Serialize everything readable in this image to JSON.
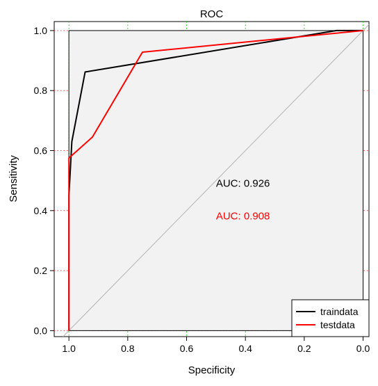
{
  "chart_data": {
    "type": "line",
    "title": "ROC",
    "xlabel": "Specificity",
    "ylabel": "Sensitivity",
    "x_reversed": true,
    "xlim": [
      1.05,
      -0.02
    ],
    "ylim": [
      -0.02,
      1.03
    ],
    "x_ticks": [
      1.0,
      0.8,
      0.6,
      0.4,
      0.2,
      0.0
    ],
    "x_tick_labels": [
      "1.0",
      "0.8",
      "0.6",
      "0.4",
      "0.2",
      "0.0"
    ],
    "y_ticks": [
      0.0,
      0.2,
      0.4,
      0.6,
      0.8,
      1.0
    ],
    "y_tick_labels": [
      "0.0",
      "0.2",
      "0.4",
      "0.6",
      "0.8",
      "1.0"
    ],
    "grid": "dotted; vertical lines green, horizontal lines red",
    "panel_background": "#f2f2f2",
    "diagonal_reference": true,
    "legend_position": "bottom-right",
    "series": [
      {
        "name": "traindata",
        "color": "#000000",
        "x": [
          1.0,
          1.0,
          0.99,
          0.945,
          0.09,
          0.0
        ],
        "y": [
          0.0,
          0.45,
          0.63,
          0.862,
          1.0,
          1.0
        ]
      },
      {
        "name": "testdata",
        "color": "#ff0000",
        "x": [
          1.0,
          1.0,
          0.92,
          0.75,
          0.0
        ],
        "y": [
          0.0,
          0.575,
          0.645,
          0.928,
          1.0
        ]
      }
    ],
    "annotations": [
      {
        "text": "AUC: 0.926",
        "color": "#000000",
        "x": 0.5,
        "y": 0.48
      },
      {
        "text": "AUC: 0.908",
        "color": "#ff0000",
        "x": 0.5,
        "y": 0.37
      }
    ]
  }
}
